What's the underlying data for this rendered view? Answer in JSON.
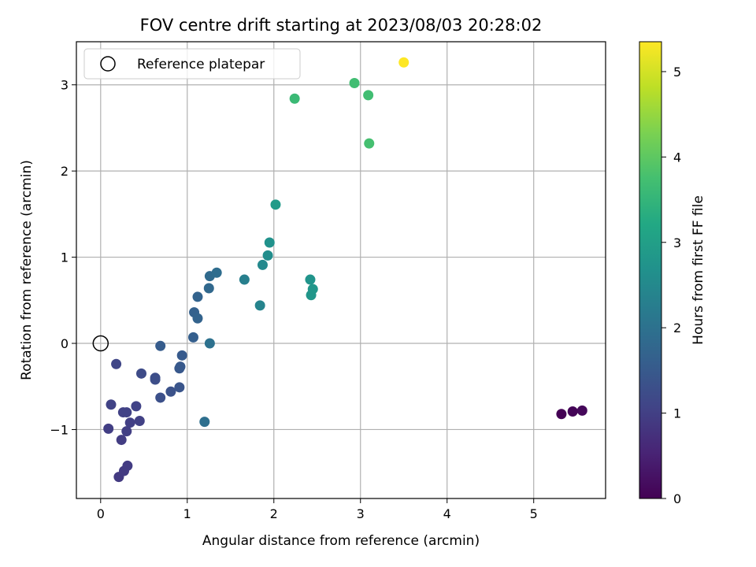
{
  "chart_data": {
    "type": "scatter",
    "title": "FOV centre drift starting at 2023/08/03 20:28:02",
    "xlabel": "Angular distance from reference (arcmin)",
    "ylabel": "Rotation from reference (arcmin)",
    "xlim": [
      -0.28,
      5.83
    ],
    "ylim": [
      -1.8,
      3.5
    ],
    "xticks": [
      0,
      1,
      2,
      3,
      4,
      5
    ],
    "yticks": [
      -1,
      0,
      1,
      2,
      3
    ],
    "xtick_labels": [
      "0",
      "1",
      "2",
      "3",
      "4",
      "5"
    ],
    "ytick_labels": [
      "−1",
      "0",
      "1",
      "2",
      "3"
    ],
    "grid": true,
    "legend": {
      "position": "top-left",
      "label": "Reference platepar"
    },
    "reference_point": {
      "x": 0,
      "y": 0
    },
    "colorbar": {
      "label": "Hours from first FF file",
      "range": [
        0,
        5.35
      ],
      "ticks": [
        0,
        1,
        2,
        3,
        4,
        5
      ],
      "tick_labels": [
        "0",
        "1",
        "2",
        "3",
        "4",
        "5"
      ],
      "colormap": "viridis"
    },
    "points": [
      {
        "x": 5.32,
        "y": -0.82,
        "c": 0.0
      },
      {
        "x": 5.45,
        "y": -0.79,
        "c": 0.05
      },
      {
        "x": 5.56,
        "y": -0.78,
        "c": 0.1
      },
      {
        "x": 0.21,
        "y": -1.55,
        "c": 0.9
      },
      {
        "x": 0.27,
        "y": -1.48,
        "c": 0.92
      },
      {
        "x": 0.31,
        "y": -1.42,
        "c": 0.94
      },
      {
        "x": 0.24,
        "y": -1.12,
        "c": 0.95
      },
      {
        "x": 0.09,
        "y": -0.99,
        "c": 0.97
      },
      {
        "x": 0.3,
        "y": -1.02,
        "c": 0.98
      },
      {
        "x": 0.34,
        "y": -0.92,
        "c": 1.0
      },
      {
        "x": 0.45,
        "y": -0.9,
        "c": 1.02
      },
      {
        "x": 0.26,
        "y": -0.8,
        "c": 1.03
      },
      {
        "x": 0.3,
        "y": -0.8,
        "c": 1.04
      },
      {
        "x": 0.12,
        "y": -0.71,
        "c": 1.05
      },
      {
        "x": 0.41,
        "y": -0.73,
        "c": 1.06
      },
      {
        "x": 0.18,
        "y": -0.24,
        "c": 1.1
      },
      {
        "x": 0.47,
        "y": -0.35,
        "c": 1.2
      },
      {
        "x": 0.63,
        "y": -0.4,
        "c": 1.25
      },
      {
        "x": 0.63,
        "y": -0.42,
        "c": 1.27
      },
      {
        "x": 0.69,
        "y": -0.63,
        "c": 1.3
      },
      {
        "x": 0.81,
        "y": -0.56,
        "c": 1.35
      },
      {
        "x": 0.91,
        "y": -0.51,
        "c": 1.4
      },
      {
        "x": 0.91,
        "y": -0.29,
        "c": 1.45
      },
      {
        "x": 0.92,
        "y": -0.27,
        "c": 1.48
      },
      {
        "x": 0.94,
        "y": -0.14,
        "c": 1.5
      },
      {
        "x": 0.69,
        "y": -0.03,
        "c": 1.55
      },
      {
        "x": 1.07,
        "y": 0.07,
        "c": 1.6
      },
      {
        "x": 1.08,
        "y": 0.36,
        "c": 1.65
      },
      {
        "x": 1.12,
        "y": 0.29,
        "c": 1.68
      },
      {
        "x": 1.12,
        "y": 0.54,
        "c": 1.7
      },
      {
        "x": 1.25,
        "y": 0.64,
        "c": 1.8
      },
      {
        "x": 1.26,
        "y": 0.78,
        "c": 1.85
      },
      {
        "x": 1.34,
        "y": 0.82,
        "c": 1.9
      },
      {
        "x": 1.2,
        "y": -0.91,
        "c": 1.95
      },
      {
        "x": 1.26,
        "y": 0.0,
        "c": 2.0
      },
      {
        "x": 1.66,
        "y": 0.74,
        "c": 2.3
      },
      {
        "x": 1.84,
        "y": 0.44,
        "c": 2.4
      },
      {
        "x": 1.87,
        "y": 0.91,
        "c": 2.5
      },
      {
        "x": 1.93,
        "y": 1.02,
        "c": 2.6
      },
      {
        "x": 1.95,
        "y": 1.17,
        "c": 2.7
      },
      {
        "x": 2.42,
        "y": 0.74,
        "c": 2.75
      },
      {
        "x": 2.43,
        "y": 0.56,
        "c": 2.78
      },
      {
        "x": 2.45,
        "y": 0.63,
        "c": 2.8
      },
      {
        "x": 2.02,
        "y": 1.61,
        "c": 2.9
      },
      {
        "x": 2.24,
        "y": 2.84,
        "c": 3.6
      },
      {
        "x": 2.93,
        "y": 3.02,
        "c": 3.7
      },
      {
        "x": 3.09,
        "y": 2.88,
        "c": 3.7
      },
      {
        "x": 3.1,
        "y": 2.32,
        "c": 3.75
      },
      {
        "x": 3.5,
        "y": 3.26,
        "c": 5.35
      }
    ]
  }
}
